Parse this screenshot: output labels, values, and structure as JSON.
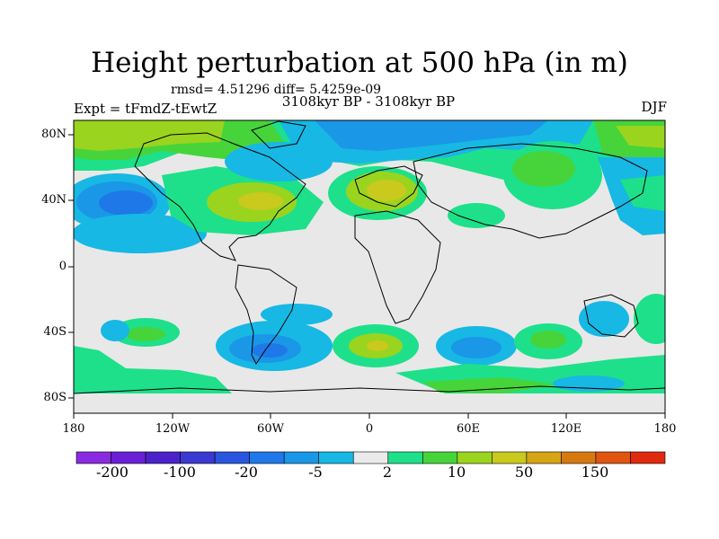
{
  "title": "Height perturbation at 500 hPa (in m)",
  "stats": "rmsd= 4.51296 diff= 5.4259e-09",
  "period": "3108kyr BP - 3108kyr BP",
  "expt": "Expt = tFmdZ-tEwtZ",
  "season": "DJF",
  "lat_ticks": [
    "80N",
    "40N",
    "0",
    "40S",
    "80S"
  ],
  "lon_ticks": [
    "180",
    "120W",
    "60W",
    "0",
    "60E",
    "120E",
    "180"
  ],
  "colorbar": {
    "colors": [
      "#8a2be2",
      "#6a1fd6",
      "#4b22c9",
      "#3a3ad0",
      "#2a55e0",
      "#1e78e8",
      "#1a97e6",
      "#17b8e4",
      "#eaeaea",
      "#1ee08a",
      "#46d43a",
      "#9ad41e",
      "#c9c91e",
      "#d6a415",
      "#d67a10",
      "#e05510",
      "#e02a10"
    ],
    "labels": [
      "-200",
      "-100",
      "-20",
      "-5",
      "2",
      "10",
      "50",
      "150"
    ]
  }
}
